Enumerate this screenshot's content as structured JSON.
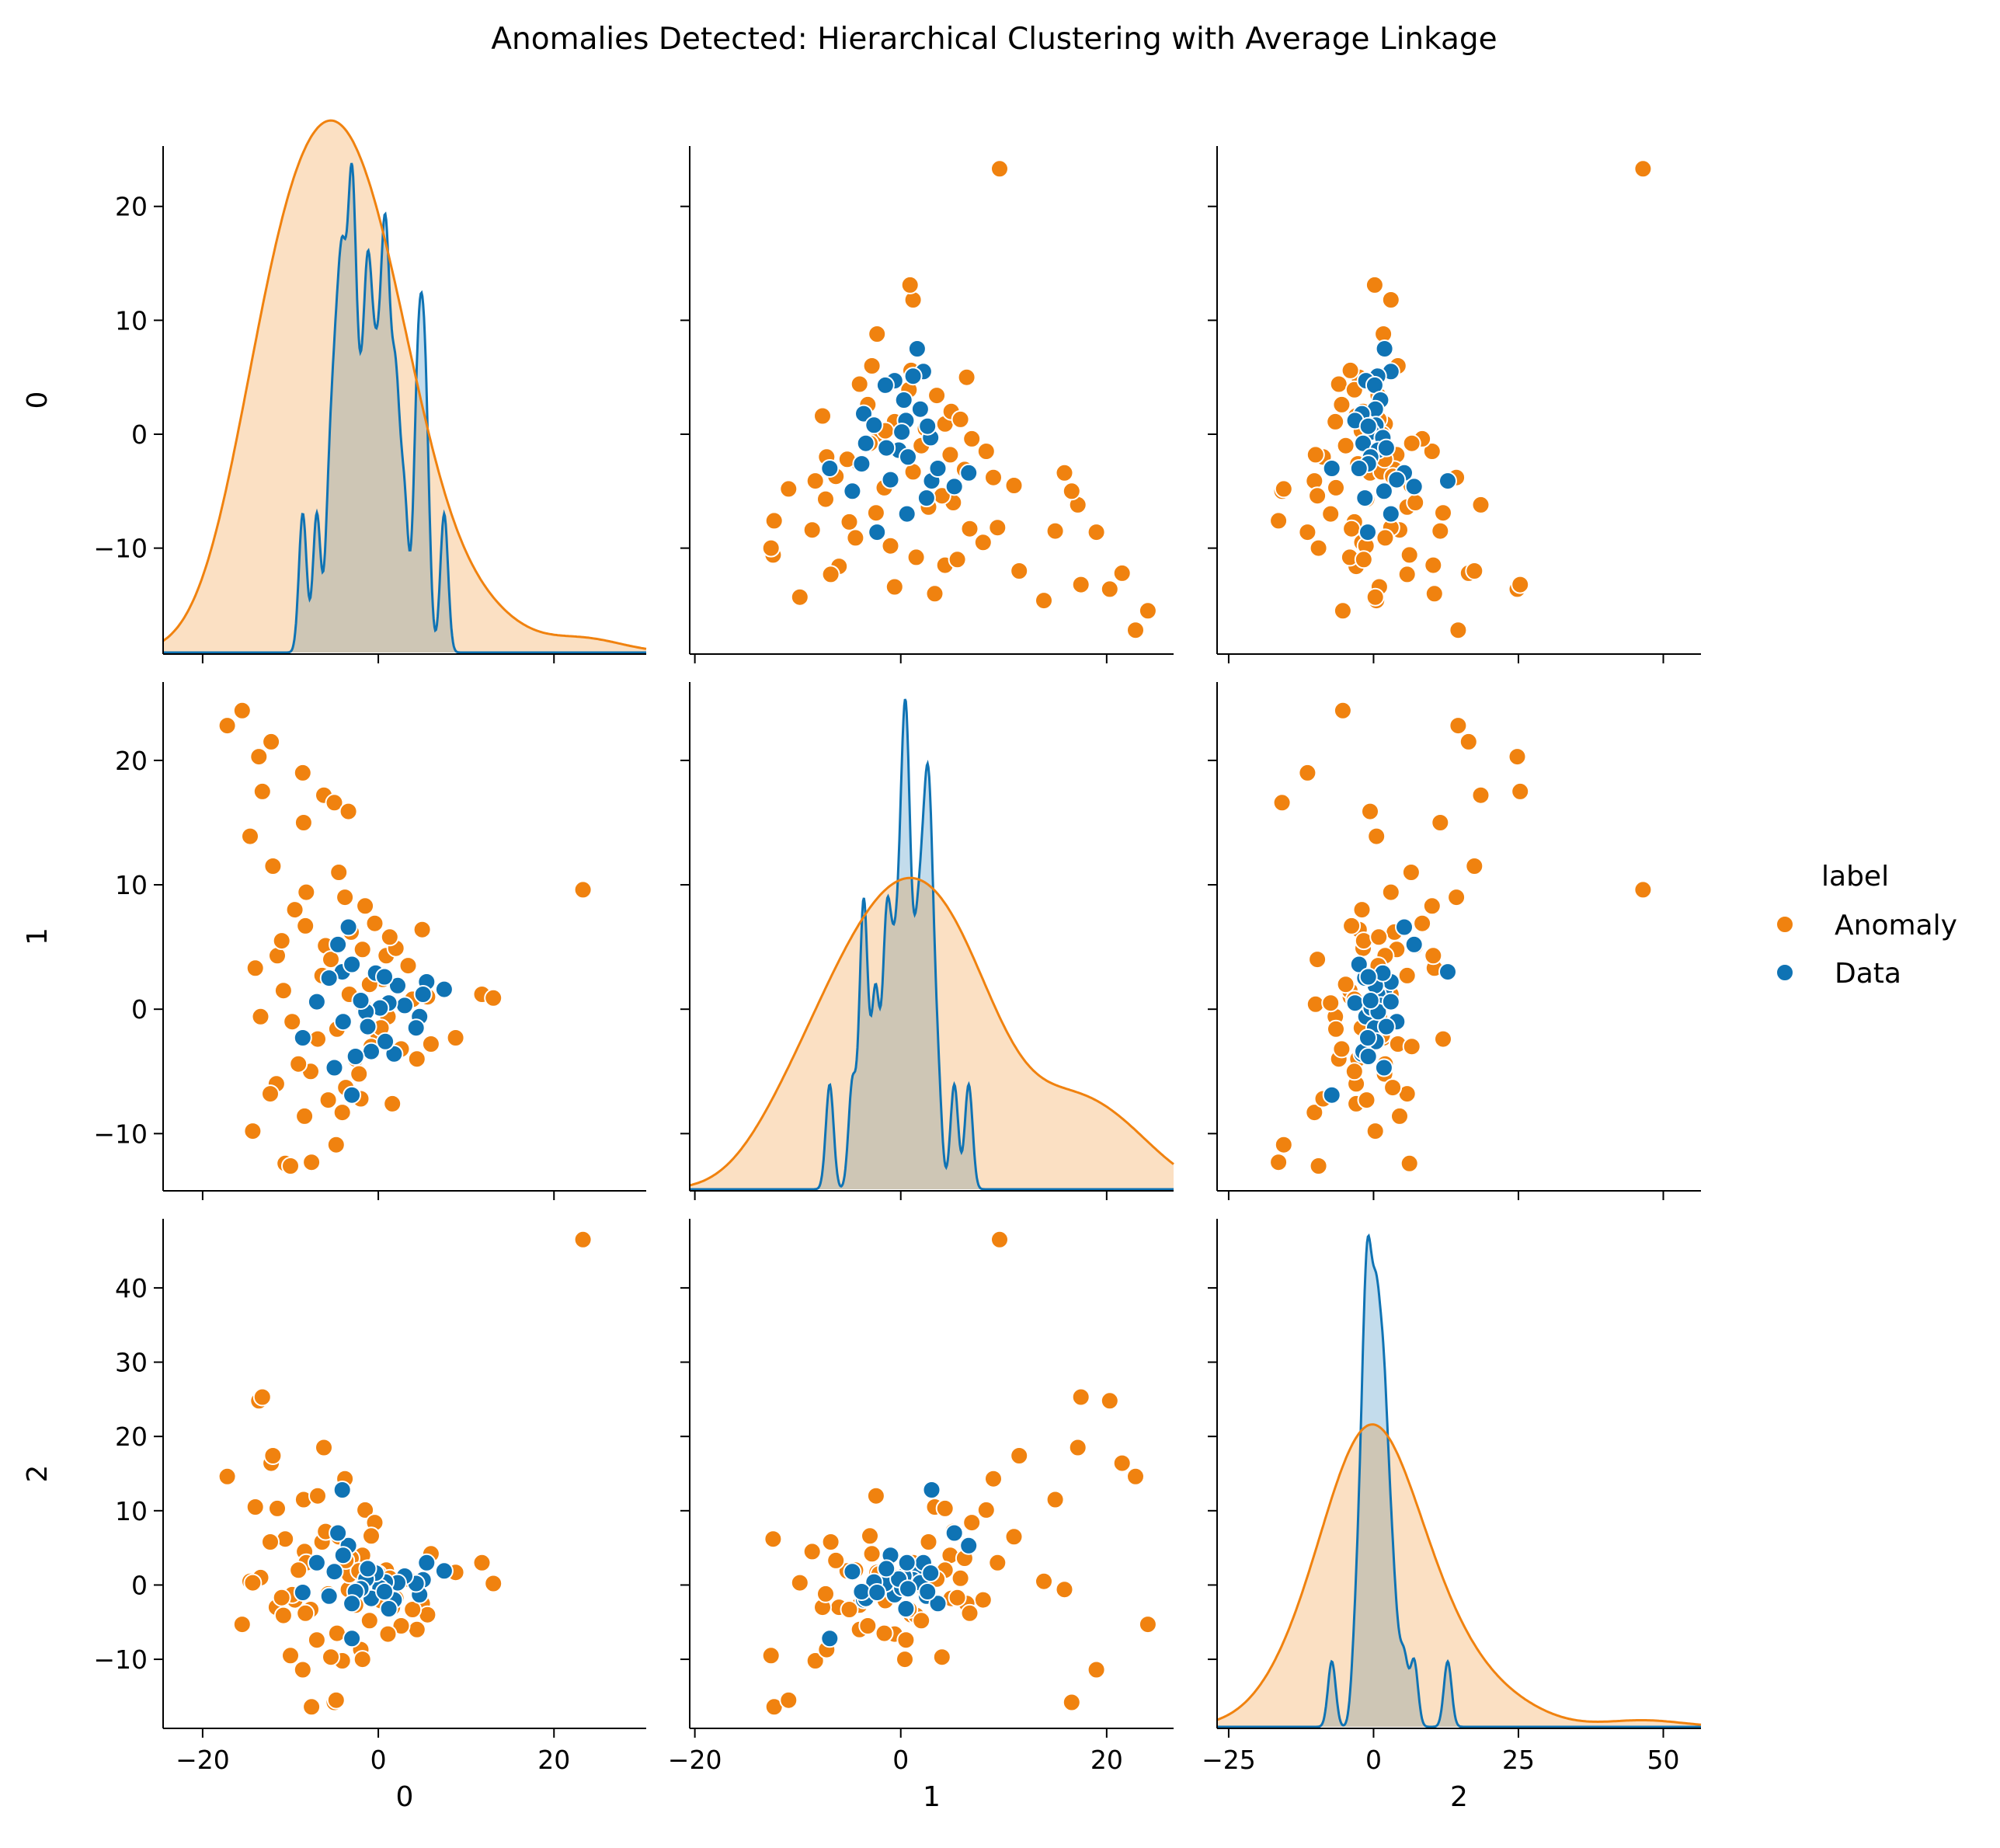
{
  "chart_data": {
    "type": "scatter",
    "title": "Anomalies Detected: Hierarchical Clustering with Average Linkage",
    "variables": [
      "0",
      "1",
      "2"
    ],
    "legend": {
      "title": "label",
      "placement": "right",
      "entries": [
        {
          "name": "Anomaly",
          "color": "#f0820f"
        },
        {
          "name": "Data",
          "color": "#0f73b4"
        }
      ]
    },
    "axes": {
      "0": {
        "ticks": [
          -20,
          0,
          20
        ],
        "lim": [
          -24.5,
          30.5
        ]
      },
      "1": {
        "ticks": [
          -20,
          0,
          20
        ],
        "lim": [
          -20.5,
          26.5
        ]
      },
      "2": {
        "ticks": [
          -25,
          0,
          25,
          50
        ],
        "lim": [
          -27,
          56.5
        ]
      }
    },
    "row_axes": {
      "0": {
        "ticks": [
          -10,
          0,
          10,
          20
        ],
        "lim": [
          -19.3,
          25.3
        ]
      },
      "1": {
        "ticks": [
          -10,
          0,
          10,
          20
        ],
        "lim": [
          -14.6,
          26.3
        ]
      },
      "2": {
        "ticks": [
          -10,
          0,
          10,
          20,
          30,
          40
        ],
        "lim": [
          -19.3,
          49.3
        ]
      }
    },
    "anomaly_points": [
      [
        23.3,
        9.6,
        46.5
      ],
      [
        -17.2,
        22.8,
        14.6
      ],
      [
        -15.5,
        24.0,
        -5.3
      ],
      [
        -13.6,
        20.3,
        24.8
      ],
      [
        -13.2,
        17.5,
        25.3
      ],
      [
        -12.2,
        21.5,
        16.4
      ],
      [
        -12.0,
        11.5,
        17.4
      ],
      [
        -8.6,
        19.0,
        -11.4
      ],
      [
        -8.5,
        15.0,
        11.5
      ],
      [
        -6.2,
        17.2,
        18.5
      ],
      [
        -5.0,
        16.6,
        -15.8
      ],
      [
        -3.4,
        15.9,
        -0.6
      ],
      [
        -14.6,
        13.9,
        0.5
      ],
      [
        -14.0,
        3.3,
        10.5
      ],
      [
        -13.4,
        -0.6,
        1.0
      ],
      [
        -14.3,
        -9.8,
        0.3
      ],
      [
        -11.6,
        -6.0,
        -3.0
      ],
      [
        -11.5,
        4.3,
        10.3
      ],
      [
        -10.6,
        -12.4,
        6.2
      ],
      [
        -10.0,
        -12.6,
        -9.5
      ],
      [
        -8.4,
        -8.6,
        4.5
      ],
      [
        -7.6,
        -12.3,
        -16.4
      ],
      [
        -4.8,
        -10.9,
        -15.5
      ],
      [
        -4.1,
        -8.3,
        -10.2
      ],
      [
        -2.0,
        -7.2,
        -8.7
      ],
      [
        1.6,
        -7.6,
        -3.0
      ],
      [
        -9.5,
        8.0,
        -2.0
      ],
      [
        -8.2,
        9.4,
        3.0
      ],
      [
        -4.5,
        11.0,
        6.5
      ],
      [
        -3.8,
        9.0,
        14.3
      ],
      [
        -1.5,
        8.3,
        10.1
      ],
      [
        -0.4,
        6.9,
        8.4
      ],
      [
        -1.8,
        4.8,
        4.0
      ],
      [
        0.9,
        4.3,
        2.0
      ],
      [
        3.4,
        3.5,
        0.8
      ],
      [
        5.0,
        6.4,
        -2.5
      ],
      [
        5.6,
        1.0,
        -4.0
      ],
      [
        8.8,
        -2.3,
        1.7
      ],
      [
        11.8,
        1.2,
        3.0
      ],
      [
        13.1,
        0.9,
        0.2
      ],
      [
        4.4,
        -4.0,
        -6.0
      ],
      [
        2.6,
        -3.2,
        -5.5
      ],
      [
        0.0,
        -2.1,
        1.5
      ],
      [
        -2.6,
        -4.0,
        -2.7
      ],
      [
        -5.7,
        -7.3,
        -1.2
      ],
      [
        -7.7,
        -5.0,
        -3.3
      ],
      [
        -6.4,
        2.7,
        5.8
      ],
      [
        -6.0,
        5.1,
        7.2
      ],
      [
        -3.1,
        6.2,
        3.6
      ],
      [
        0.5,
        2.4,
        -0.9
      ],
      [
        -1.8,
        0.4,
        -10.0
      ],
      [
        1.1,
        -0.6,
        -6.6
      ],
      [
        -10.8,
        1.5,
        -4.1
      ],
      [
        -9.1,
        -4.4,
        2.0
      ],
      [
        -4.7,
        -1.6,
        -6.5
      ],
      [
        -3.3,
        1.2,
        1.4
      ],
      [
        2.0,
        4.9,
        -1.8
      ],
      [
        6.0,
        -2.8,
        4.2
      ],
      [
        -12.3,
        -6.8,
        5.8
      ],
      [
        -7.0,
        0.5,
        -7.4
      ],
      [
        -2.2,
        -5.2,
        1.9
      ],
      [
        -0.8,
        -3.0,
        6.6
      ],
      [
        3.9,
        0.8,
        -3.3
      ],
      [
        -5.4,
        4.0,
        -9.7
      ],
      [
        -9.8,
        -1.0,
        -1.3
      ],
      [
        -1.0,
        2.0,
        -4.8
      ],
      [
        -3.7,
        -6.3,
        3.3
      ],
      [
        0.3,
        -1.5,
        -2.1
      ],
      [
        -6.9,
        -2.4,
        12.0
      ],
      [
        -8.3,
        6.7,
        -3.8
      ],
      [
        -11.0,
        5.5,
        -1.7
      ],
      [
        1.3,
        5.8,
        0.9
      ]
    ],
    "data_points": [
      [
        7.5,
        1.6,
        1.9
      ],
      [
        5.5,
        2.2,
        3.0
      ],
      [
        5.1,
        1.2,
        0.7
      ],
      [
        4.7,
        -0.6,
        -1.3
      ],
      [
        4.3,
        -1.5,
        0.2
      ],
      [
        3.0,
        0.3,
        1.2
      ],
      [
        2.2,
        1.9,
        0.3
      ],
      [
        1.8,
        -3.6,
        -2.0
      ],
      [
        1.2,
        0.5,
        -3.2
      ],
      [
        0.8,
        -2.6,
        0.4
      ],
      [
        0.2,
        0.1,
        -0.4
      ],
      [
        -0.3,
        2.9,
        1.6
      ],
      [
        -0.8,
        -3.4,
        -1.8
      ],
      [
        -1.4,
        -0.2,
        0.8
      ],
      [
        -2.0,
        0.7,
        -0.5
      ],
      [
        -2.6,
        -3.8,
        -0.9
      ],
      [
        -3.4,
        6.6,
        5.3
      ],
      [
        -4.1,
        3.0,
        12.8
      ],
      [
        -4.6,
        5.2,
        7.0
      ],
      [
        -5.0,
        -4.7,
        1.8
      ],
      [
        -5.6,
        2.5,
        -1.5
      ],
      [
        -3.0,
        -6.9,
        -7.2
      ],
      [
        -8.6,
        -2.3,
        -1.0
      ],
      [
        -7.0,
        0.6,
        3.0
      ],
      [
        -4.0,
        -1.0,
        4.0
      ],
      [
        -3.0,
        3.6,
        -2.5
      ],
      [
        -1.2,
        -1.4,
        2.2
      ],
      [
        0.7,
        2.6,
        -0.9
      ]
    ]
  }
}
